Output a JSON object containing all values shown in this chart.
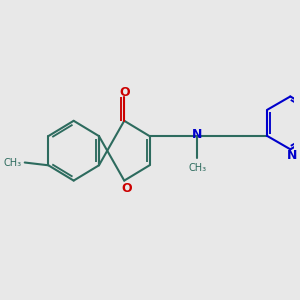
{
  "bg_color": "#e8e8e8",
  "bond_color": "#2d6b5e",
  "o_color": "#cc0000",
  "n_color": "#0000cc",
  "lw": 1.5,
  "fig_w": 3.0,
  "fig_h": 3.0,
  "dpi": 100,
  "xlim": [
    0,
    10
  ],
  "ylim": [
    2.5,
    8.0
  ]
}
